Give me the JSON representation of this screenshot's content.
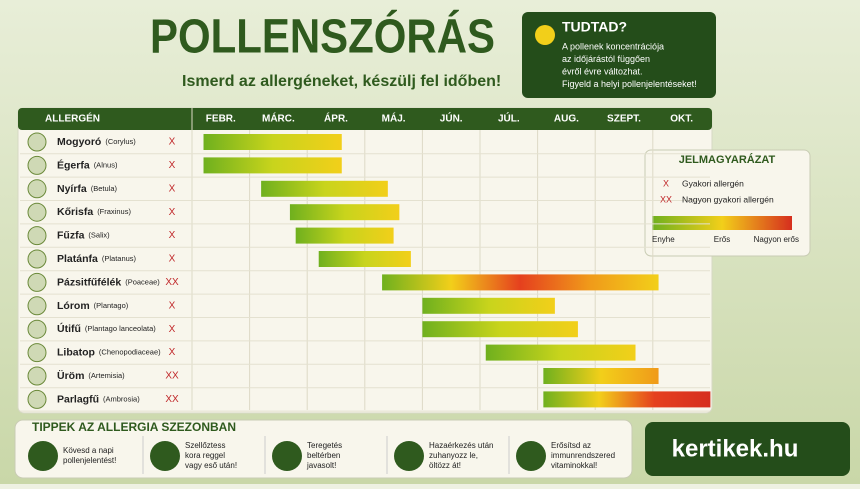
{
  "header": {
    "title": "POLLENSZÓRÁS",
    "subtitle": "Ismerd az allergéneket, készülj fel időben!"
  },
  "info": {
    "title": "TUDTAD?",
    "lines": [
      "A pollenek koncentrációja",
      "az időjárástól függően",
      "évről évre változhat.",
      "Figyeld a helyi pollenjelentéseket!"
    ]
  },
  "table": {
    "header": "ALLERGÉN",
    "months": [
      "FEBR.",
      "MÁRC.",
      "ÁPR.",
      "MÁJ.",
      "JÚN.",
      "JÚL.",
      "AUG.",
      "SZEPT.",
      "OKT."
    ],
    "rows": [
      {
        "name": "Mogyoró",
        "latin": "(Corylus)",
        "mark": "X",
        "start": 2.2,
        "end": 4.6,
        "colors": [
          "#6fb01e",
          "#c8d41c",
          "#f2cf1a"
        ]
      },
      {
        "name": "Égerfa",
        "latin": "(Alnus)",
        "mark": "X",
        "start": 2.2,
        "end": 4.6,
        "colors": [
          "#6fb01e",
          "#c8d41c",
          "#f2cf1a"
        ]
      },
      {
        "name": "Nyírfa",
        "latin": "(Betula)",
        "mark": "X",
        "start": 3.2,
        "end": 5.4,
        "colors": [
          "#6fb01e",
          "#c8d41c",
          "#f2cf1a"
        ]
      },
      {
        "name": "Kőrisfa",
        "latin": "(Fraxinus)",
        "mark": "X",
        "start": 3.7,
        "end": 5.6,
        "colors": [
          "#6fb01e",
          "#c8d41c",
          "#f2cf1a"
        ]
      },
      {
        "name": "Fűzfa",
        "latin": "(Salix)",
        "mark": "X",
        "start": 3.8,
        "end": 5.5,
        "colors": [
          "#6fb01e",
          "#c8d41c",
          "#f2cf1a"
        ]
      },
      {
        "name": "Platánfa",
        "latin": "(Platanus)",
        "mark": "X",
        "start": 4.2,
        "end": 5.8,
        "colors": [
          "#6fb01e",
          "#c8d41c",
          "#f2cf1a"
        ]
      },
      {
        "name": "Pázsitfűfélék",
        "latin": "(Poaceae)",
        "mark": "XX",
        "start": 5.3,
        "end": 10.1,
        "colors": [
          "#6fb01e",
          "#f2cf1a",
          "#e5401e",
          "#f09a1a",
          "#f2cf1a"
        ]
      },
      {
        "name": "Lórom",
        "latin": "(Plantago)",
        "mark": "X",
        "start": 6.0,
        "end": 8.3,
        "colors": [
          "#6fb01e",
          "#c8d41c",
          "#f2cf1a"
        ]
      },
      {
        "name": "Útifű",
        "latin": "(Plantago lanceolata)",
        "mark": "X",
        "start": 6.0,
        "end": 8.7,
        "colors": [
          "#6fb01e",
          "#c8d41c",
          "#f2cf1a"
        ]
      },
      {
        "name": "Libatop",
        "latin": "(Chenopodiaceae)",
        "mark": "X",
        "start": 7.1,
        "end": 9.7,
        "colors": [
          "#6fb01e",
          "#c8d41c",
          "#f2cf1a"
        ]
      },
      {
        "name": "Üröm",
        "latin": "(Artemisia)",
        "mark": "XX",
        "start": 8.1,
        "end": 10.1,
        "colors": [
          "#6fb01e",
          "#f2cf1a",
          "#f09a1a"
        ]
      },
      {
        "name": "Parlagfű",
        "latin": "(Ambrosia)",
        "mark": "XX",
        "start": 8.1,
        "end": 11.0,
        "colors": [
          "#6fb01e",
          "#f2cf1a",
          "#e5401e",
          "#d62e1e"
        ]
      }
    ]
  },
  "legend": {
    "title": "JELMAGYARÁZAT",
    "items": [
      {
        "mark": "X",
        "text": "Gyakori allergén"
      },
      {
        "mark": "XX",
        "text": "Nagyon gyakori allergén"
      }
    ],
    "scale": [
      "Enyhe",
      "Erős",
      "Nagyon erős"
    ]
  },
  "tips": {
    "title": "TIPPEK AZ ALLERGIA SZEZONBAN",
    "items": [
      [
        "Kövesd a napi",
        "pollenjelentést!"
      ],
      [
        "Szellőztess",
        "kora reggel",
        "vagy eső után!"
      ],
      [
        "Teregetés",
        "beltérben",
        "javasolt!"
      ],
      [
        "Hazaérkezés után",
        "zuhanyozz le,",
        "öltözz át!"
      ],
      [
        "Erősítsd az",
        "immunrendszered",
        "vitaminokkal!"
      ]
    ]
  },
  "brand": "kertikek.hu"
}
